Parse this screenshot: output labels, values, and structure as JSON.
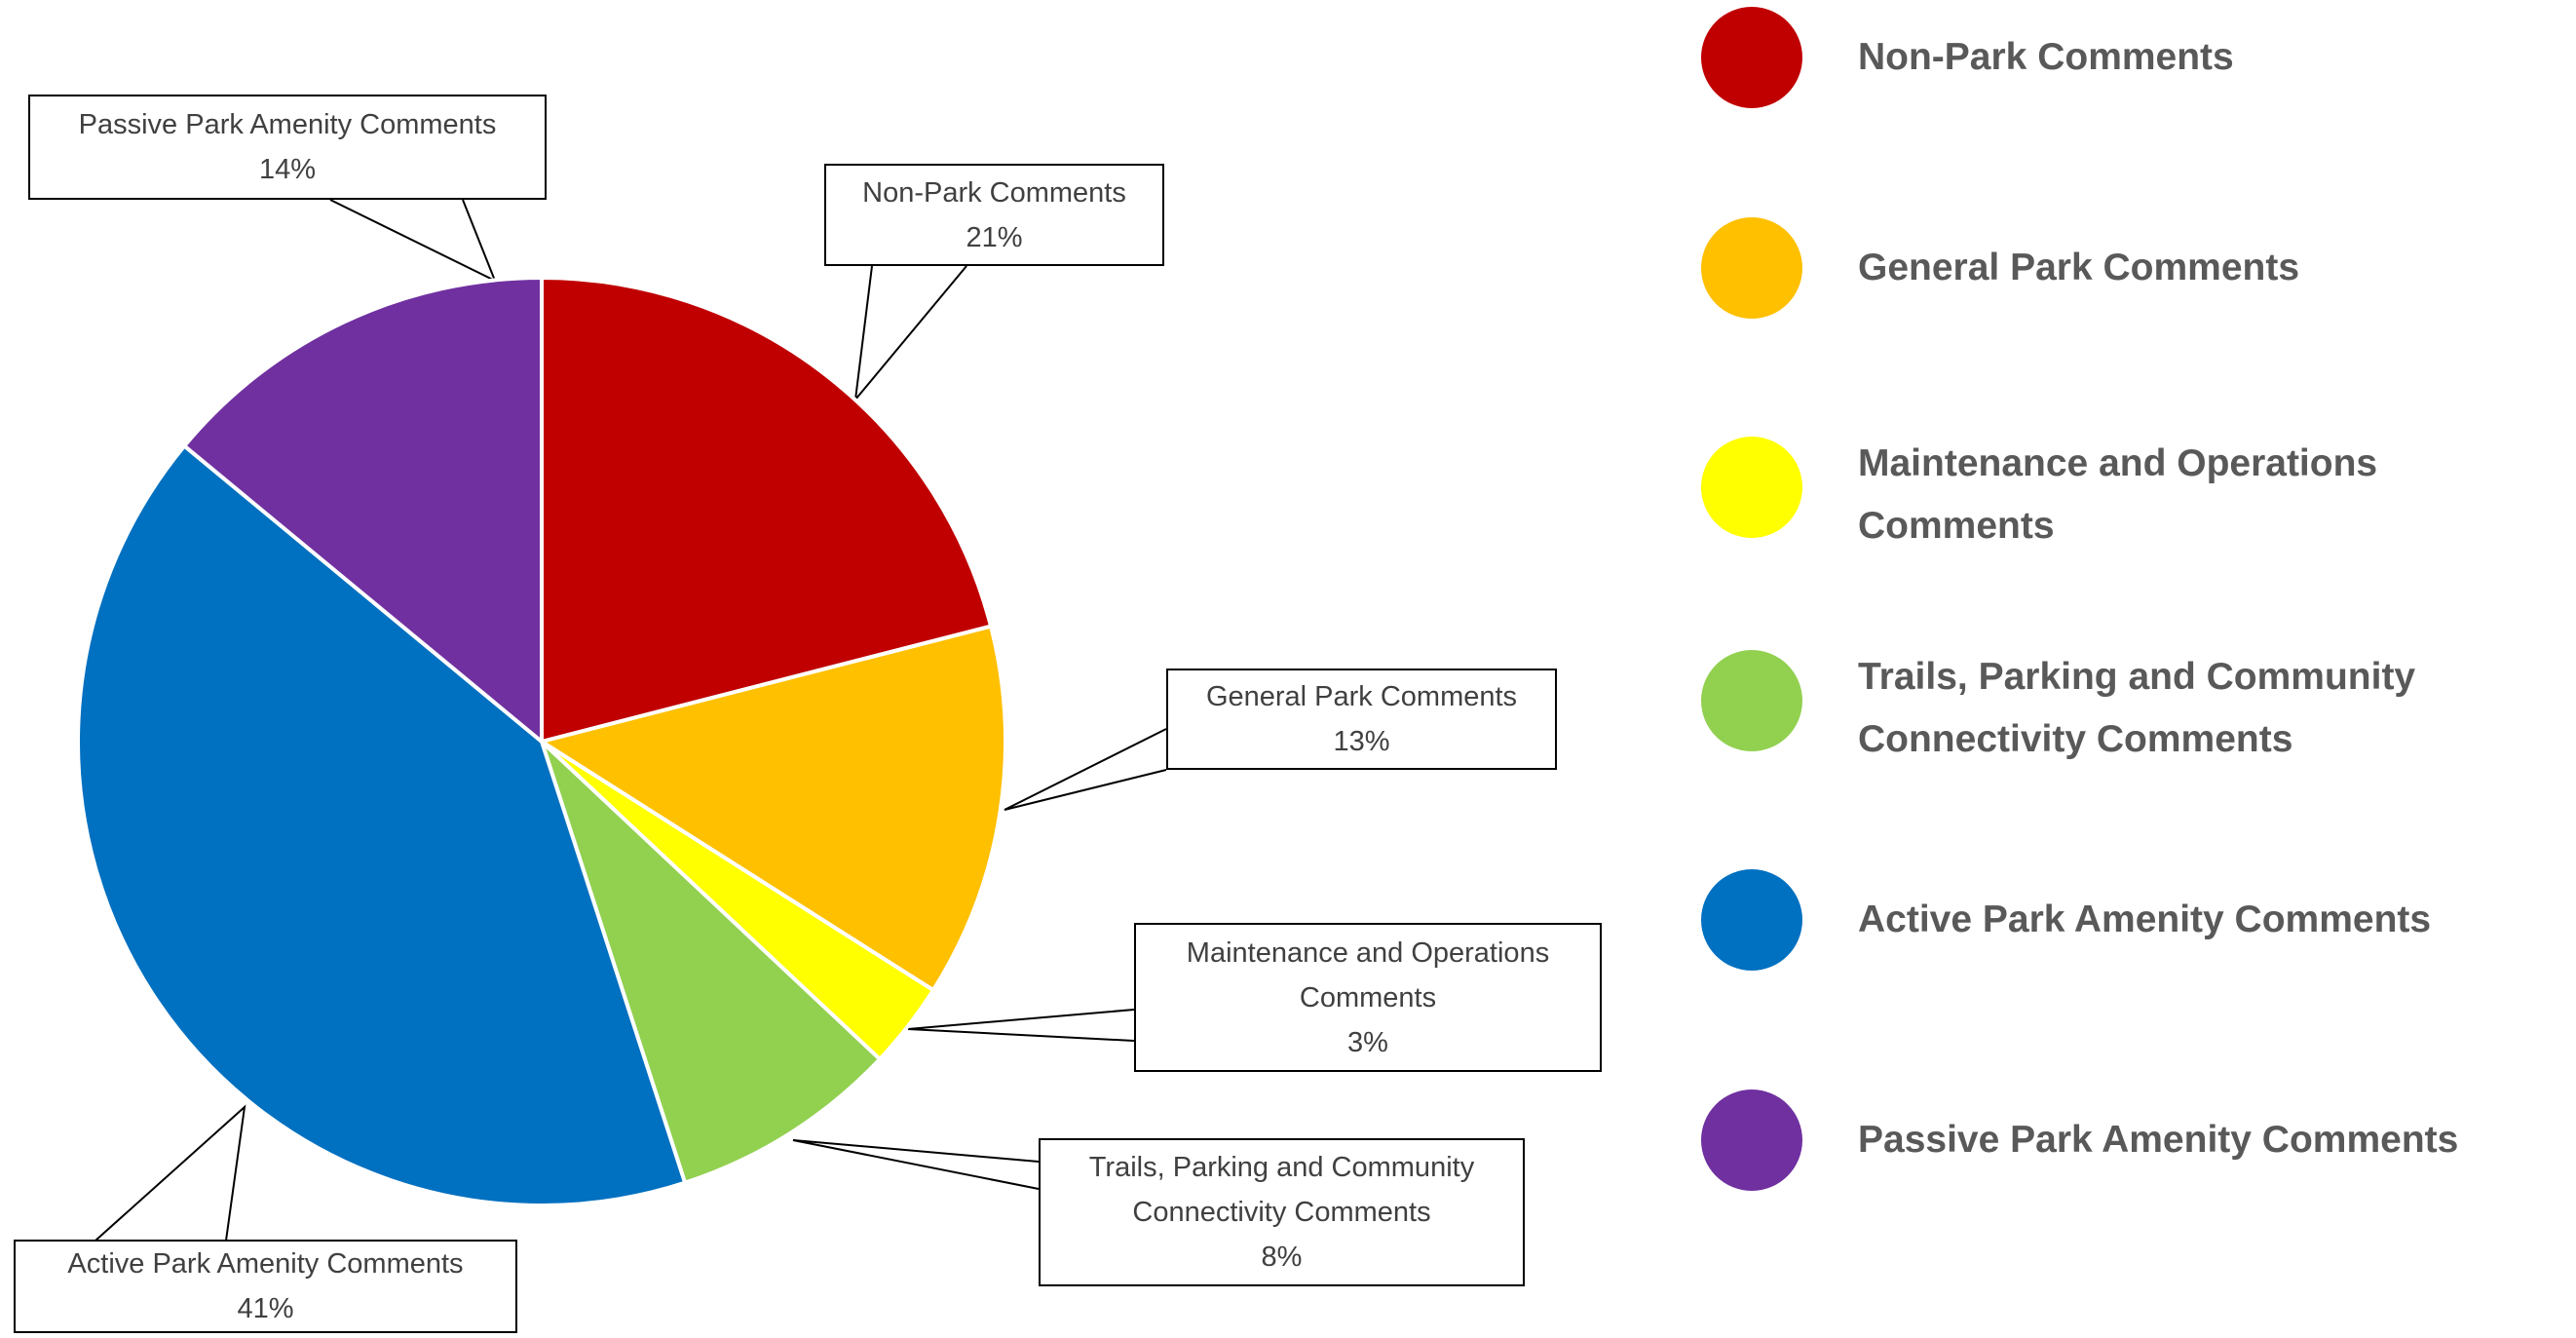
{
  "chart_data": {
    "type": "pie",
    "categories": [
      "Non-Park Comments",
      "General Park Comments",
      "Maintenance and Operations Comments",
      "Trails, Parking and Community Connectivity Comments",
      "Active Park Amenity Comments",
      "Passive Park Amenity Comments"
    ],
    "values": [
      21,
      13,
      3,
      8,
      41,
      14
    ],
    "value_labels": [
      "21%",
      "13%",
      "3%",
      "8%",
      "41%",
      "14%"
    ],
    "colors": [
      "#c00000",
      "#ffc000",
      "#ffff00",
      "#92d050",
      "#0070c0",
      "#7030a0"
    ],
    "legend": "right"
  }
}
